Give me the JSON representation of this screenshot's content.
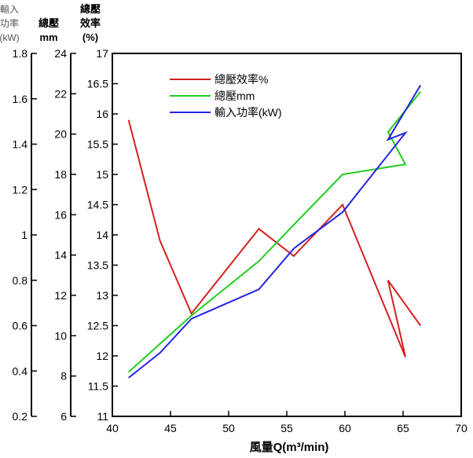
{
  "chart_data": {
    "type": "line",
    "xlabel": "風量Q(m³/min)",
    "xlim": [
      40,
      70
    ],
    "xticks": [
      40,
      45,
      50,
      55,
      60,
      65,
      70
    ],
    "y_axes": [
      {
        "id": "power",
        "title_lines": [
          "輸入",
          "功率",
          "(kW)"
        ],
        "ylim": [
          0.2,
          1.8
        ],
        "ticks": [
          0.2,
          0.4,
          0.6,
          0.8,
          1,
          1.2,
          1.4,
          1.6,
          1.8
        ]
      },
      {
        "id": "pressure",
        "title_lines": [
          "總壓",
          "mm"
        ],
        "ylim": [
          6,
          24
        ],
        "ticks": [
          6,
          8,
          10,
          12,
          14,
          16,
          18,
          20,
          22,
          24
        ]
      },
      {
        "id": "efficiency",
        "title_lines": [
          "總壓",
          "效率",
          "(%)"
        ],
        "ylim": [
          11,
          17
        ],
        "ticks": [
          11,
          11.5,
          12,
          12.5,
          13,
          13.5,
          14,
          14.5,
          15,
          15.5,
          16,
          16.5,
          17
        ]
      }
    ],
    "series": [
      {
        "name": "總壓效率%",
        "axis": "efficiency",
        "color": "#d42020",
        "x": [
          41.4,
          44.1,
          46.8,
          52.6,
          55.6,
          59.8,
          65.2,
          63.7,
          66.5
        ],
        "y": [
          15.9,
          13.9,
          12.7,
          14.1,
          13.65,
          14.5,
          11.98,
          13.25,
          12.5
        ]
      },
      {
        "name": "總壓mm",
        "axis": "pressure",
        "color": "#22cc22",
        "x": [
          41.4,
          46.8,
          52.6,
          55.6,
          59.8,
          65.2,
          63.7,
          66.5
        ],
        "y": [
          8.2,
          11.0,
          13.7,
          15.5,
          18.0,
          18.5,
          20.1,
          22.1
        ],
        "_note": "segment 65.2→63.7 is the return loop"
      },
      {
        "name": "輸入功率(kW)",
        "axis": "power",
        "color": "#2424e0",
        "x": [
          41.4,
          44.1,
          46.8,
          52.6,
          55.6,
          59.8,
          65.2,
          63.7,
          66.5
        ],
        "y": [
          0.37,
          0.48,
          0.63,
          0.76,
          0.94,
          1.1,
          1.45,
          1.42,
          1.66
        ]
      }
    ],
    "legend_position": "top-left"
  }
}
